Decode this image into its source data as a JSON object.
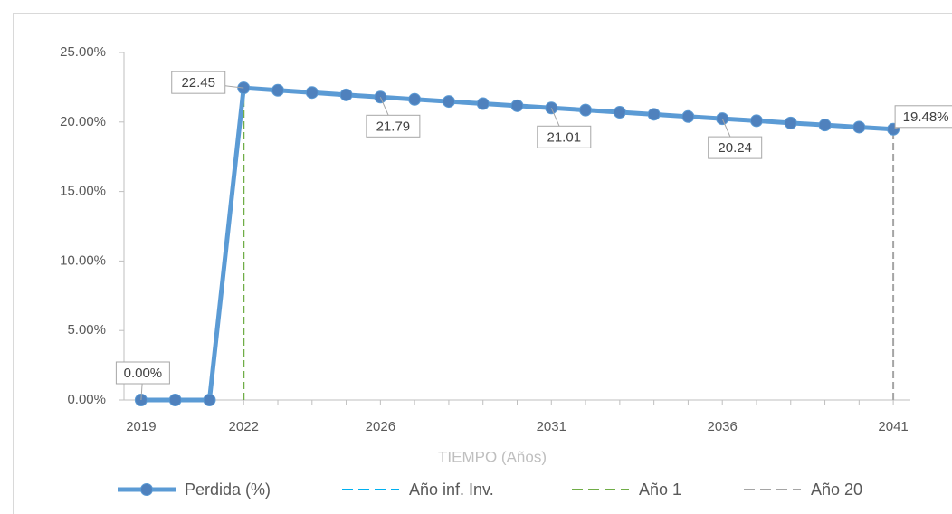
{
  "chart_data": {
    "type": "line",
    "x_label": "TIEMPO (Años)",
    "x": [
      2019,
      2020,
      2021,
      2022,
      2023,
      2024,
      2025,
      2026,
      2027,
      2028,
      2029,
      2030,
      2031,
      2032,
      2033,
      2034,
      2035,
      2036,
      2037,
      2038,
      2039,
      2040,
      2041
    ],
    "xlim": [
      2018.5,
      2041.5
    ],
    "xticks": [
      2019,
      2022,
      2026,
      2031,
      2036,
      2041
    ],
    "ylim": [
      0,
      25
    ],
    "yticks": [
      {
        "value": 0,
        "label": "0.00%"
      },
      {
        "value": 5,
        "label": "5.00%"
      },
      {
        "value": 10,
        "label": "10.00%"
      },
      {
        "value": 15,
        "label": "15.00%"
      },
      {
        "value": 20,
        "label": "20.00%"
      },
      {
        "value": 25,
        "label": "25.00%"
      }
    ],
    "series": [
      {
        "name": "Perdida (%)",
        "color": "#5b9bd5",
        "values": [
          0,
          0,
          0,
          22.45,
          22.28,
          22.12,
          21.95,
          21.79,
          21.63,
          21.48,
          21.32,
          21.17,
          21.01,
          20.86,
          20.7,
          20.55,
          20.39,
          20.24,
          20.09,
          19.93,
          19.78,
          19.63,
          19.48
        ],
        "value_labels": [
          "0.00%",
          null,
          null,
          "22.45",
          null,
          null,
          null,
          "21.79",
          null,
          null,
          null,
          null,
          "21.01",
          null,
          null,
          null,
          null,
          "20.24",
          null,
          null,
          null,
          null,
          "19.48%"
        ]
      },
      {
        "name": "Año inf. Inv.",
        "color": "#00b0f0",
        "style": "dashed"
      },
      {
        "name": "Año 1",
        "color": "#70ad47",
        "style": "dashed",
        "x": 2022
      },
      {
        "name": "Año 20",
        "color": "#a5a5a5",
        "style": "dashed",
        "x": 2041
      }
    ]
  }
}
